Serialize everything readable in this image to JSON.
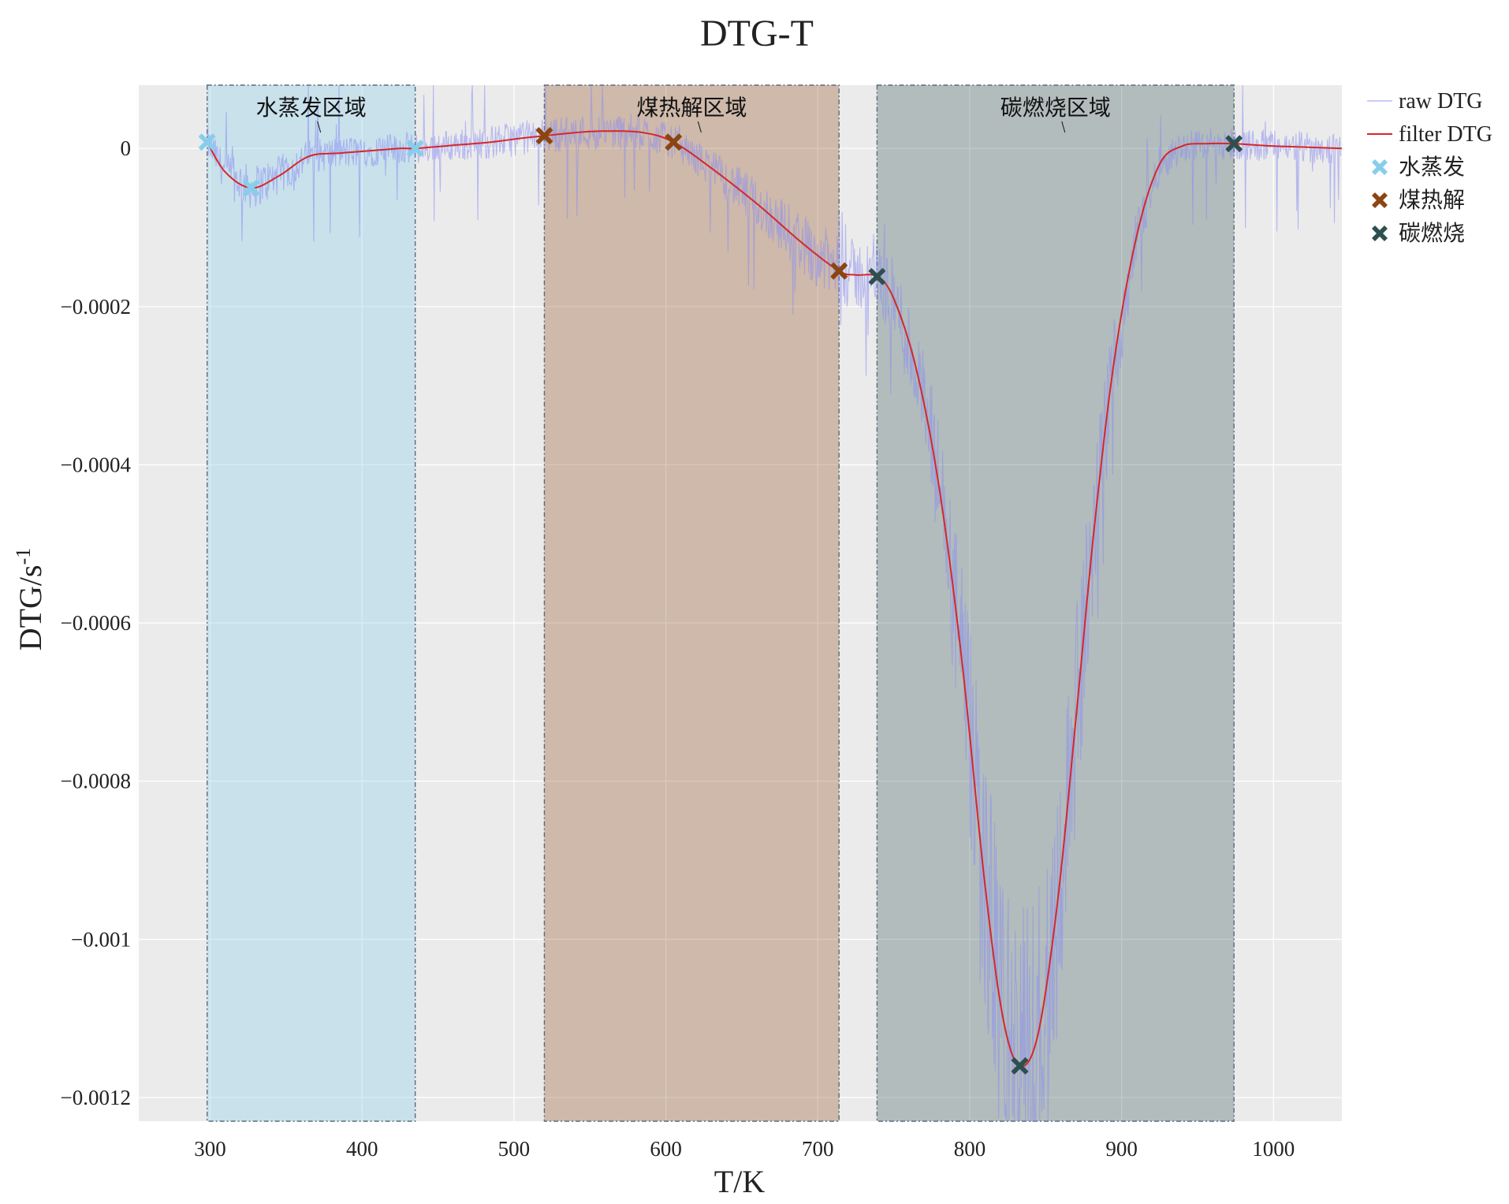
{
  "chart_data": {
    "type": "line",
    "title": "DTG-T",
    "xlabel": "T/K",
    "ylabel": "DTG/s",
    "ylabel_superscript": "-1",
    "xlim": [
      253,
      1045
    ],
    "ylim": [
      -0.00123,
      8e-05
    ],
    "x_ticks": [
      300,
      400,
      500,
      600,
      700,
      800,
      900,
      1000
    ],
    "x_tick_labels": [
      "300",
      "400",
      "500",
      "600",
      "700",
      "800",
      "900",
      "1000"
    ],
    "y_ticks": [
      0,
      -0.0002,
      -0.0004,
      -0.0006,
      -0.0008,
      -0.001,
      -0.0012
    ],
    "y_tick_labels": [
      "0",
      "−0.0002",
      "−0.0004",
      "−0.0006",
      "−0.0008",
      "−0.001",
      "−0.0012"
    ],
    "grid": true,
    "background": "#ebebeb",
    "legend_position": "outside-right-top",
    "regions": [
      {
        "name": "水蒸发区域",
        "x_start": 298,
        "x_end": 435,
        "color": "#87ceeb",
        "opacity": 0.35
      },
      {
        "name": "煤热解区域",
        "x_start": 520,
        "x_end": 714,
        "color": "#8b4513",
        "opacity": 0.3
      },
      {
        "name": "碳燃烧区域",
        "x_start": 739,
        "x_end": 974,
        "color": "#2f4f4f",
        "opacity": 0.3
      }
    ],
    "series": [
      {
        "name": "raw DTG",
        "color": "#8a8ef0",
        "noisy": true,
        "x": [
          298,
          310,
          327,
          345,
          365,
          385,
          405,
          425,
          435,
          460,
          485,
          505,
          520,
          540,
          560,
          585,
          605,
          630,
          660,
          690,
          714,
          725,
          739,
          750,
          765,
          780,
          795,
          810,
          822,
          833,
          845,
          858,
          870,
          882,
          895,
          910,
          925,
          940,
          955,
          974,
          1000,
          1045
        ],
        "values": [
          8e-06,
          -3e-05,
          -5e-05,
          -3.5e-05,
          -1e-05,
          -6e-06,
          -3e-06,
          0.0,
          0.0,
          4e-06,
          8e-06,
          1.3e-05,
          1.6e-05,
          2e-05,
          2.2e-05,
          2e-05,
          8e-06,
          -2.5e-05,
          -7e-05,
          -0.00012,
          -0.000155,
          -0.00016,
          -0.000162,
          -0.00019,
          -0.00028,
          -0.00043,
          -0.00065,
          -0.00093,
          -0.0011,
          -0.00116,
          -0.00112,
          -0.00095,
          -0.00072,
          -0.00048,
          -0.00027,
          -0.00011,
          -2e-05,
          3e-06,
          6e-06,
          6e-06,
          3e-06,
          0.0
        ]
      },
      {
        "name": "filter DTG",
        "color": "#d62728",
        "noisy": false,
        "x": [
          298,
          310,
          327,
          345,
          365,
          385,
          405,
          425,
          435,
          460,
          485,
          505,
          520,
          540,
          560,
          585,
          605,
          630,
          660,
          690,
          714,
          725,
          739,
          750,
          765,
          780,
          795,
          810,
          822,
          833,
          845,
          858,
          870,
          882,
          895,
          910,
          925,
          940,
          955,
          974,
          1000,
          1045
        ],
        "values": [
          8e-06,
          -3e-05,
          -5e-05,
          -3.5e-05,
          -1e-05,
          -6e-06,
          -3e-06,
          0.0,
          0.0,
          4e-06,
          8e-06,
          1.3e-05,
          1.6e-05,
          2e-05,
          2.2e-05,
          2e-05,
          8e-06,
          -2.5e-05,
          -7e-05,
          -0.00012,
          -0.000155,
          -0.00016,
          -0.000162,
          -0.00019,
          -0.00028,
          -0.00043,
          -0.00065,
          -0.00093,
          -0.0011,
          -0.00116,
          -0.00112,
          -0.00095,
          -0.00072,
          -0.00048,
          -0.00027,
          -0.00011,
          -2e-05,
          3e-06,
          6e-06,
          6e-06,
          3e-06,
          0.0
        ]
      }
    ],
    "markers": [
      {
        "name": "水蒸发",
        "color": "#87ceeb",
        "points": [
          {
            "x": 298,
            "y": 8e-06
          },
          {
            "x": 327,
            "y": -5e-05
          },
          {
            "x": 435,
            "y": 0.0
          }
        ]
      },
      {
        "name": "煤热解",
        "color": "#8b4513",
        "points": [
          {
            "x": 520,
            "y": 1.6e-05
          },
          {
            "x": 605,
            "y": 8e-06
          },
          {
            "x": 714,
            "y": -0.000155
          }
        ]
      },
      {
        "name": "碳燃烧",
        "color": "#2f4f4f",
        "points": [
          {
            "x": 739,
            "y": -0.000162
          },
          {
            "x": 833,
            "y": -0.00116
          },
          {
            "x": 974,
            "y": 6e-06
          }
        ]
      }
    ]
  }
}
